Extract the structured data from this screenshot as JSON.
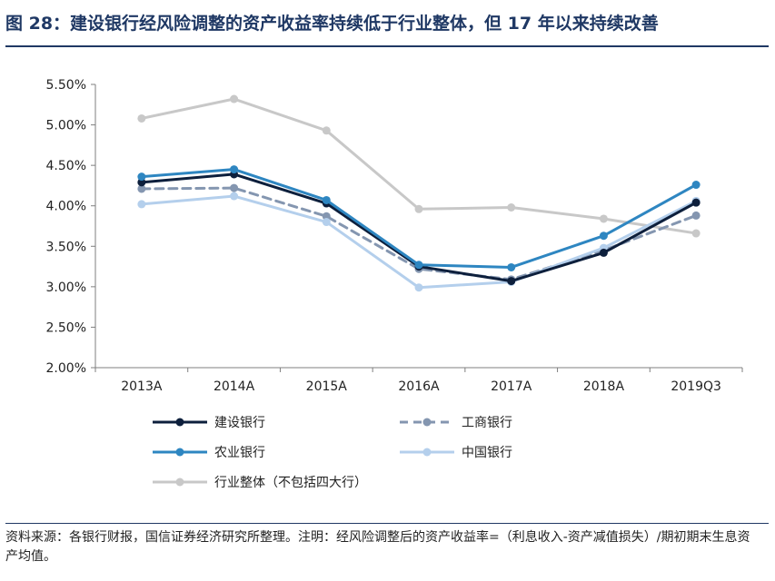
{
  "title": "图 28：建设银行经风险调整的资产收益率持续低于行业整体，但 17 年以来持续改善",
  "note": "资料来源：各银行财报，国信证券经济研究所整理。注明：经风险调整后的资产收益率=（利息收入-资产减值损失）/期初期末生息资产均值。",
  "chart_data": {
    "type": "line",
    "categories": [
      "2013A",
      "2014A",
      "2015A",
      "2016A",
      "2017A",
      "2018A",
      "2019Q3"
    ],
    "ylim": [
      2.0,
      5.5
    ],
    "yticks": [
      "2.00%",
      "2.50%",
      "3.00%",
      "3.50%",
      "4.00%",
      "4.50%",
      "5.00%",
      "5.50%"
    ],
    "grid": false,
    "legend_position": "bottom",
    "series": [
      {
        "name": "建设银行",
        "color": "#0d1f3c",
        "dashed": false,
        "values": [
          4.29,
          4.39,
          4.03,
          3.25,
          3.07,
          3.42,
          4.04
        ]
      },
      {
        "name": "工商银行",
        "color": "#8496b0",
        "dashed": true,
        "values": [
          4.21,
          4.22,
          3.87,
          3.22,
          3.09,
          3.45,
          3.88
        ]
      },
      {
        "name": "农业银行",
        "color": "#2e86c1",
        "dashed": false,
        "values": [
          4.36,
          4.45,
          4.07,
          3.27,
          3.24,
          3.63,
          4.26
        ]
      },
      {
        "name": "中国银行",
        "color": "#b4cfec",
        "dashed": false,
        "values": [
          4.02,
          4.12,
          3.8,
          2.99,
          3.06,
          3.48,
          4.06
        ]
      },
      {
        "name": "行业整体（不包括四大行）",
        "color": "#c8c8c8",
        "dashed": false,
        "values": [
          5.08,
          5.32,
          4.93,
          3.96,
          3.98,
          3.84,
          3.66
        ]
      }
    ]
  }
}
